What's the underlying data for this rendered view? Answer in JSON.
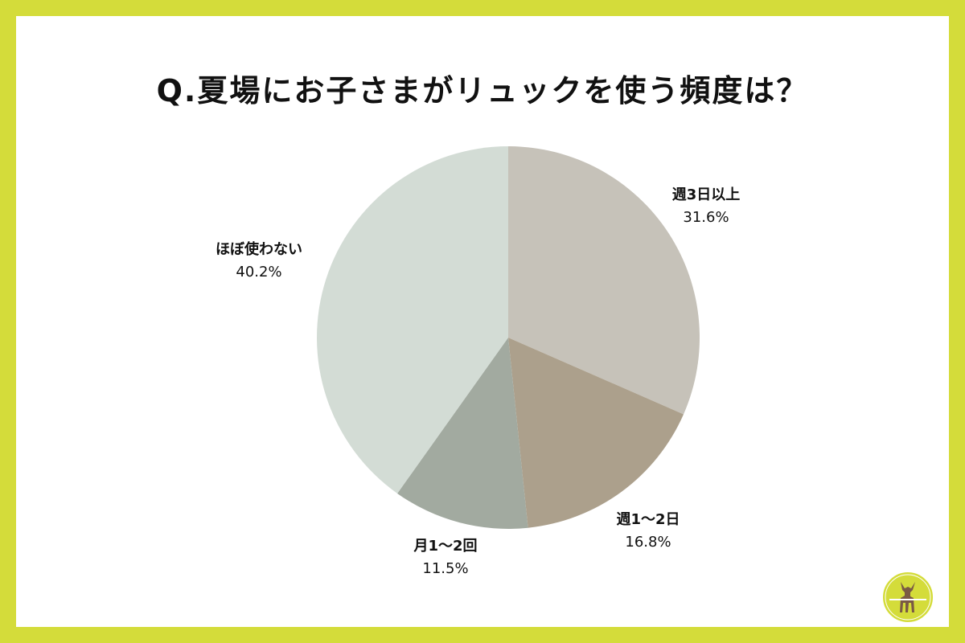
{
  "chart_data": {
    "type": "pie",
    "title": "Q.夏場にお子さまがリュックを使う頻度は？",
    "start_angle_deg": 0,
    "direction": "clockwise",
    "slices": [
      {
        "label": "週3日以上",
        "value": 31.6,
        "value_label": "31.6%",
        "color": "#c6c2b9"
      },
      {
        "label": "週1～2日",
        "value": 16.8,
        "value_label": "16.8%",
        "color": "#aca08c"
      },
      {
        "label": "月1～2回",
        "value": 11.5,
        "value_label": "11.5%",
        "color": "#a2aaa0"
      },
      {
        "label": "ほぼ使わない",
        "value": 40.2,
        "value_label": "40.2%",
        "color": "#d3dcd5"
      }
    ]
  },
  "colors": {
    "frame": "#d4dc3a",
    "panel": "#ffffff",
    "text": "#111111",
    "logo_bg": "#d4dc3a",
    "logo_deer": "#7a5a44"
  },
  "logo": {
    "icon": "deer-logo-icon"
  }
}
